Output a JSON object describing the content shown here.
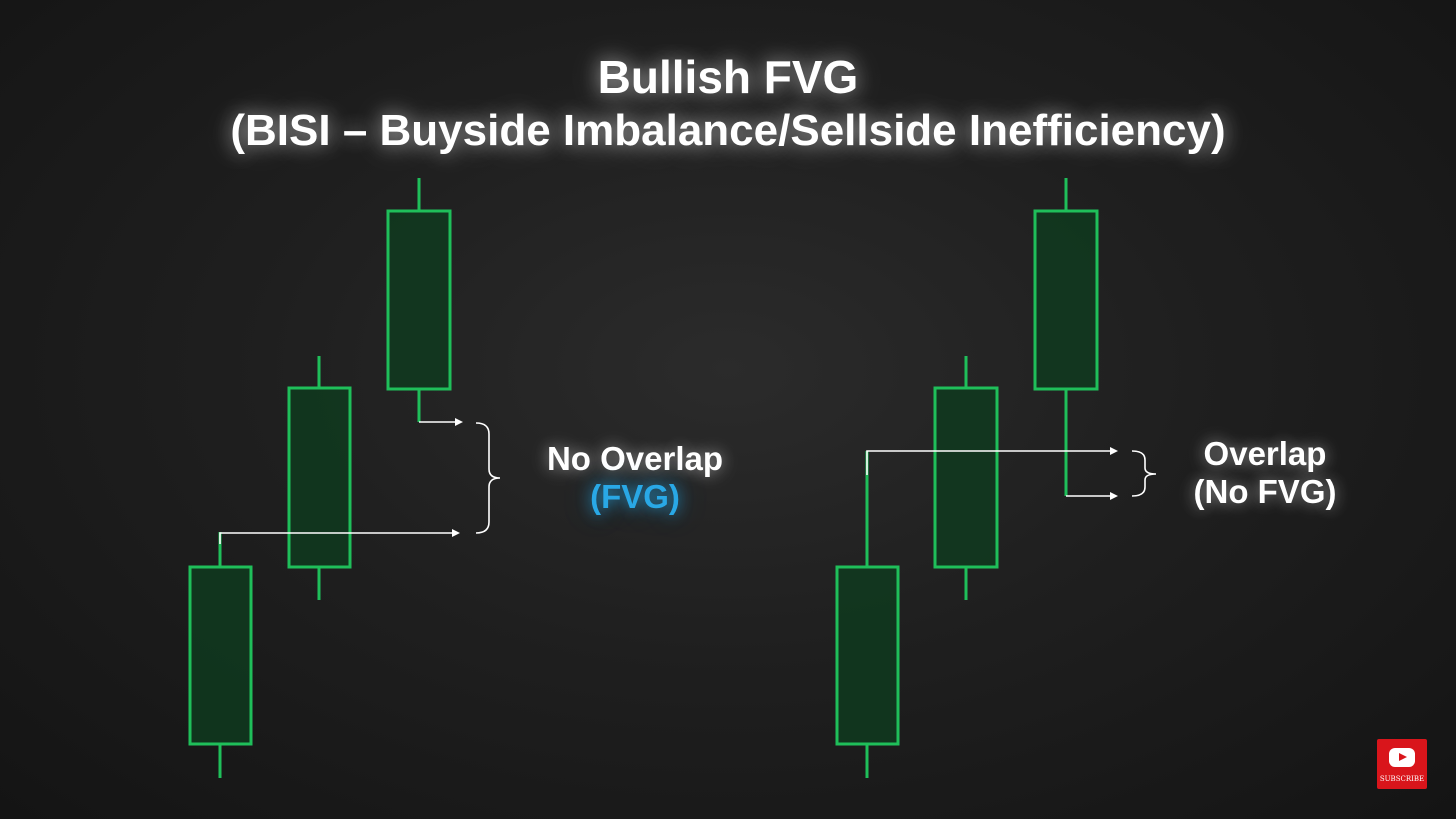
{
  "title": {
    "line1": "Bullish FVG",
    "line2": "(BISI – Buyside Imbalance/Sellside Inefficiency)"
  },
  "left_panel": {
    "label_line1": "No Overlap",
    "label_line2": "(FVG)"
  },
  "right_panel": {
    "label_line1": "Overlap",
    "label_line2": "(No FVG)"
  },
  "badge": {
    "text": "SUBSCRIBE",
    "icon": "youtube-play-icon"
  },
  "colors": {
    "background": "#1c1c1c",
    "candle_outline": "#1fbf5a",
    "candle_fill": "#0f3a1f",
    "accent": "#29a8e6",
    "text": "#ffffff",
    "badge": "#d9151b"
  }
}
